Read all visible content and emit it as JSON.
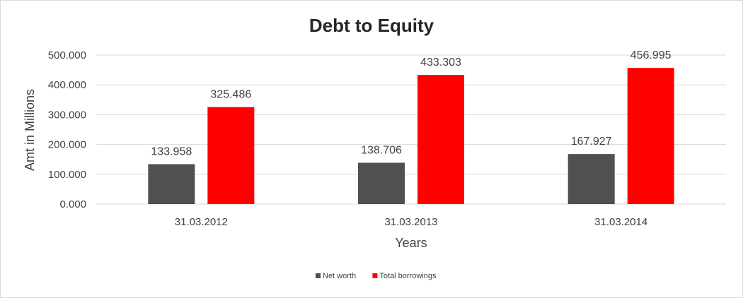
{
  "chart_data": {
    "type": "bar",
    "title": "Debt to Equity",
    "xlabel": "Years",
    "ylabel": "Amt in Millions",
    "categories": [
      "31.03.2012",
      "31.03.2013",
      "31.03.2014"
    ],
    "series": [
      {
        "name": "Net worth",
        "color": "#505050",
        "values": [
          133.958,
          138.706,
          167.927
        ],
        "labels": [
          "133.958",
          "138.706",
          "167.927"
        ]
      },
      {
        "name": "Total borrowings",
        "color": "#ff0000",
        "values": [
          325.486,
          433.303,
          456.995
        ],
        "labels": [
          "325.486",
          "433.303",
          "456.995"
        ]
      }
    ],
    "ylim": [
      0,
      500
    ],
    "yticks": [
      0,
      100,
      200,
      300,
      400,
      500
    ],
    "ytick_labels": [
      "0.000",
      "100.000",
      "200.000",
      "300.000",
      "400.000",
      "500.000"
    ],
    "grid": true,
    "legend_position": "bottom"
  }
}
